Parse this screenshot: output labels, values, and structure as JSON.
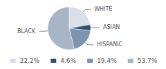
{
  "chart_data": {
    "type": "pie",
    "categories": [
      "WHITE",
      "ASIAN",
      "HISPANIC",
      "BLACK"
    ],
    "values": [
      22.2,
      4.6,
      19.4,
      53.7
    ],
    "value_labels": [
      "22.2%",
      "4.6%",
      "19.4%",
      "53.7%"
    ],
    "colors": [
      "#d8dfe9",
      "#34506f",
      "#7d94b0",
      "#a7b5c7"
    ],
    "legend": "bottom"
  }
}
